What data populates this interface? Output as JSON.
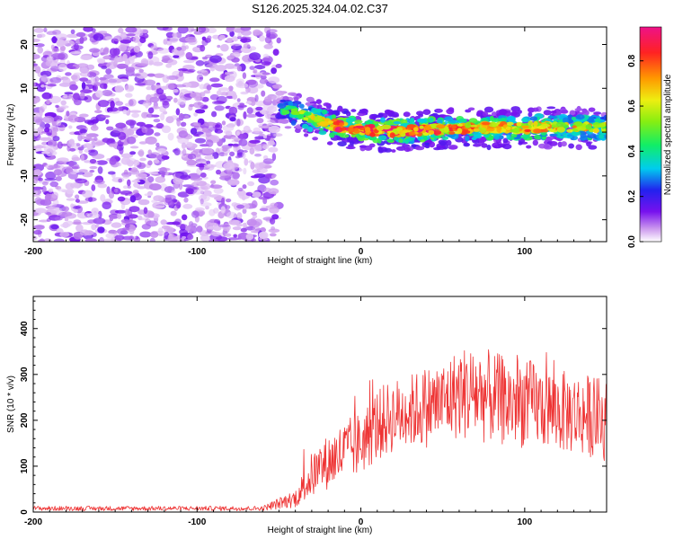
{
  "title": "S126.2025.324.04.02.C37",
  "colors": {
    "snr_line": "#ee3333",
    "background": "#ffffff",
    "axes": "#000000"
  },
  "chart_data": [
    {
      "type": "heatmap",
      "name": "spectrogram",
      "xlabel": "Height of straight line (km)",
      "ylabel": "Frequency (Hz)",
      "xlim": [
        -200,
        150
      ],
      "ylim": [
        -25,
        24
      ],
      "xticks": [
        -200,
        -100,
        0,
        100
      ],
      "yticks": [
        -20,
        -10,
        0,
        10,
        20
      ],
      "colorbar": {
        "label": "Normalized spectral amplitude",
        "range": [
          0.0,
          0.95
        ],
        "ticks": [
          "0.0",
          "0.2",
          "0.4",
          "0.6",
          "0.8"
        ]
      },
      "noise_region_x": [
        -200,
        -50
      ],
      "signal_track": {
        "x": [
          -50,
          -45,
          -40,
          -35,
          -30,
          -25,
          -20,
          -15,
          -10,
          -5,
          0,
          10,
          20,
          30,
          40,
          50,
          60,
          70,
          80,
          90,
          100,
          110,
          120,
          130,
          140,
          150
        ],
        "frequency": [
          6,
          5,
          4.5,
          3.5,
          3,
          2.5,
          2,
          1.5,
          1,
          0.8,
          0.5,
          0.3,
          0.2,
          0.3,
          0.5,
          0.6,
          0.8,
          1,
          1,
          1,
          1,
          1.2,
          1,
          1,
          1,
          1
        ],
        "amplitude": [
          0.35,
          0.45,
          0.5,
          0.55,
          0.6,
          0.65,
          0.75,
          0.85,
          0.9,
          0.85,
          0.8,
          0.85,
          0.85,
          0.8,
          0.9,
          0.8,
          0.75,
          0.8,
          0.75,
          0.7,
          0.75,
          0.7,
          0.7,
          0.7,
          0.7,
          0.6
        ]
      }
    },
    {
      "type": "line",
      "name": "snr",
      "xlabel": "Height of straight line (km)",
      "ylabel": "SNR (10 * v/v)",
      "xlim": [
        -200,
        150
      ],
      "ylim": [
        0,
        470
      ],
      "xticks": [
        -200,
        -100,
        0,
        100
      ],
      "yticks": [
        0,
        100,
        200,
        300,
        400
      ],
      "envelope": {
        "x": [
          -200,
          -60,
          -40,
          -30,
          -20,
          -10,
          0,
          10,
          20,
          30,
          40,
          50,
          60,
          70,
          80,
          90,
          100,
          110,
          120,
          130,
          140,
          150
        ],
        "mean": [
          8,
          8,
          30,
          80,
          110,
          130,
          150,
          190,
          210,
          220,
          230,
          240,
          260,
          260,
          250,
          240,
          240,
          230,
          220,
          215,
          210,
          200
        ],
        "spread": [
          5,
          5,
          20,
          50,
          60,
          70,
          70,
          80,
          80,
          80,
          90,
          90,
          100,
          110,
          100,
          100,
          100,
          90,
          90,
          90,
          90,
          90
        ]
      }
    }
  ]
}
